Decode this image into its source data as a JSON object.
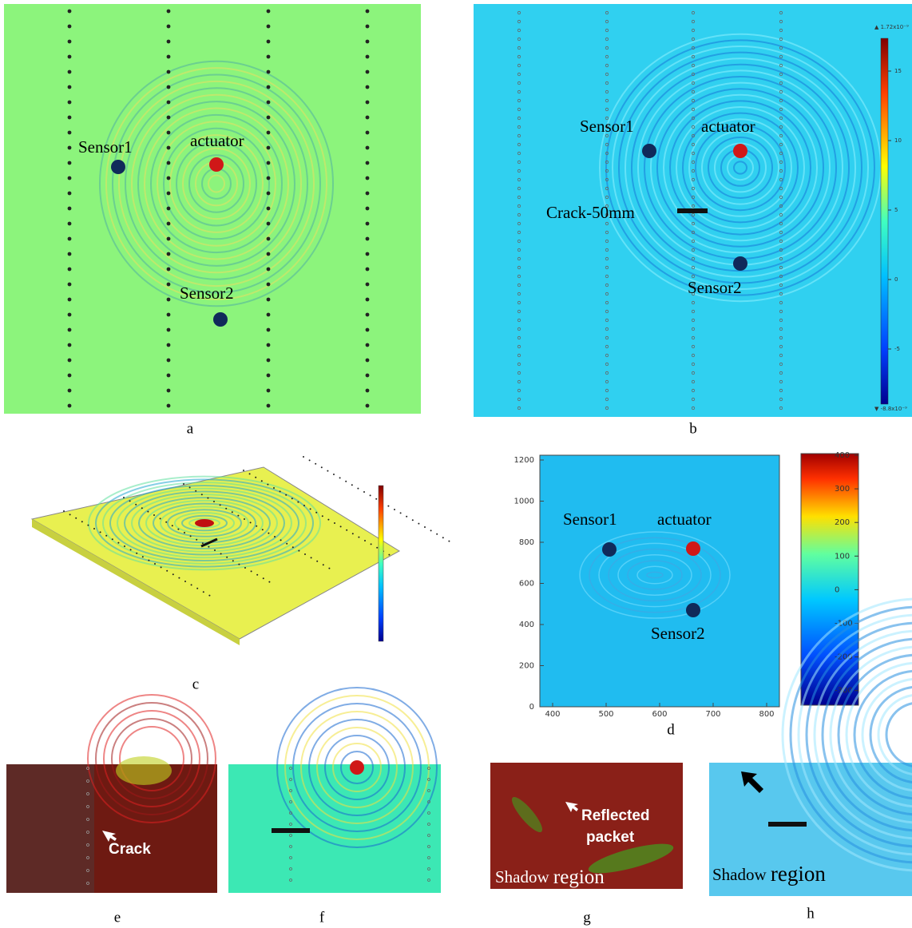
{
  "panels": {
    "a": {
      "caption": "a",
      "labels": {
        "sensor1": "Sensor1",
        "actuator": "actuator",
        "sensor2": "Sensor2"
      }
    },
    "b": {
      "caption": "b",
      "labels": {
        "sensor1": "Sensor1",
        "actuator": "actuator",
        "crack": "Crack-50mm",
        "sensor2": "Sensor2"
      },
      "colorbar": {
        "max": "▲ 1.72x10⁻⁹",
        "min": "▼ -8.8x10⁻⁹",
        "ticks": [
          15,
          10,
          5,
          0,
          -5
        ]
      }
    },
    "c": {
      "caption": "c"
    },
    "d": {
      "caption": "d",
      "labels": {
        "sensor1": "Sensor1",
        "actuator": "actuator",
        "sensor2": "Sensor2"
      },
      "xticks": [
        400,
        500,
        600,
        700,
        800
      ],
      "yticks": [
        0,
        200,
        400,
        600,
        800,
        1000,
        1200
      ],
      "colorbar_ticks": [
        400,
        300,
        200,
        100,
        0,
        -100,
        -200,
        -300
      ]
    },
    "e": {
      "caption": "e",
      "label": "Crack"
    },
    "f": {
      "caption": "f"
    },
    "g": {
      "caption": "g",
      "label_line1": "Reflected",
      "label_line2": "packet",
      "shadow_word": "Shadow",
      "region_word": "region"
    },
    "h": {
      "caption": "h",
      "shadow_word": "Shadow",
      "region_word": "region"
    }
  }
}
